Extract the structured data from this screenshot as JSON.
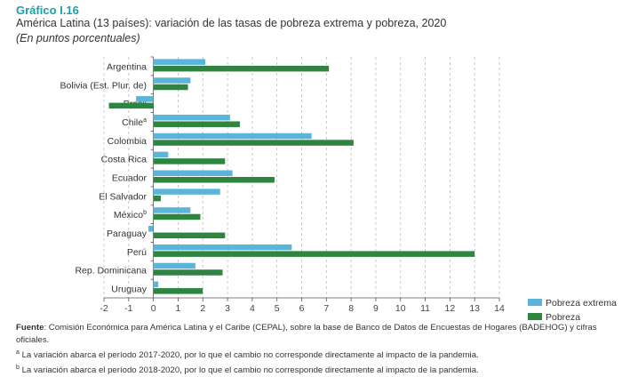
{
  "header": {
    "label": "Gráfico I.16",
    "title": "América Latina (13 países): variación de las tasas de pobreza extrema y pobreza, 2020",
    "subtitle": "(En puntos porcentuales)"
  },
  "chart_data": {
    "type": "bar",
    "orientation": "horizontal",
    "categories": [
      "Argentina",
      "Bolivia (Est. Plur. de)",
      "Brasil",
      "Chile",
      "Colombia",
      "Costa Rica",
      "Ecuador",
      "El Salvador",
      "México",
      "Paraguay",
      "Perú",
      "Rep. Dominicana",
      "Uruguay"
    ],
    "category_superscripts": [
      "",
      "",
      "",
      "a",
      "",
      "",
      "",
      "",
      "b",
      "",
      "",
      "",
      ""
    ],
    "series": [
      {
        "name": "Pobreza extrema",
        "color": "#5bb4d9",
        "values": [
          2.1,
          1.5,
          -0.7,
          3.1,
          6.4,
          0.6,
          3.2,
          2.7,
          1.5,
          -0.2,
          5.6,
          1.7,
          0.2
        ]
      },
      {
        "name": "Pobreza",
        "color": "#2e8540",
        "values": [
          7.1,
          1.4,
          -1.8,
          3.5,
          8.1,
          2.9,
          4.9,
          0.3,
          1.9,
          2.9,
          13.0,
          2.8,
          2.0
        ]
      }
    ],
    "xlim": [
      -2,
      14
    ],
    "xticks": [
      "-2",
      "-1",
      "0",
      "1",
      "2",
      "3",
      "4",
      "5",
      "6",
      "7",
      "8",
      "9",
      "10",
      "11",
      "12",
      "13",
      "14"
    ],
    "grid": "vertical dashed",
    "legend": "bottom-right"
  },
  "footer": {
    "source_label": "Fuente",
    "source_text": ": Comisión Económica para América Latina y el Caribe (CEPAL), sobre la base de Banco de Datos de Encuestas de Hogares (BADEHOG) y cifras oficiales.",
    "note_a_mark": "a",
    "note_a": " La variación abarca el período 2017-2020, por lo que el cambio no corresponde directamente al impacto de la pandemia.",
    "note_b_mark": "b",
    "note_b": " La variación abarca el período 2018-2020, por lo que el cambio no corresponde directamente al impacto de la pandemia."
  }
}
